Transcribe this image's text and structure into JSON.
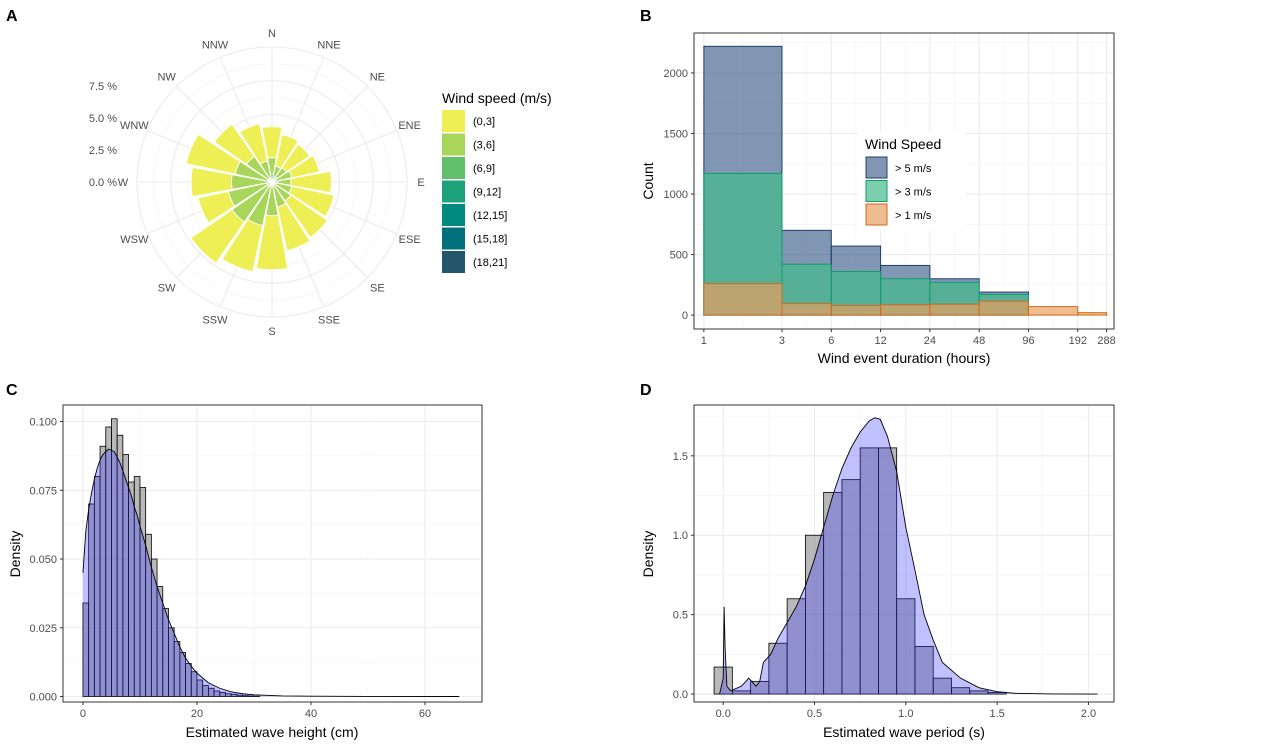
{
  "panels": [
    {
      "letter": "A"
    },
    {
      "letter": "B"
    },
    {
      "letter": "C"
    },
    {
      "letter": "D"
    }
  ],
  "chart_data": [
    {
      "panel": "A",
      "type": "windrose",
      "directions": [
        "N",
        "NNE",
        "NE",
        "ENE",
        "E",
        "ESE",
        "SE",
        "SSE",
        "S",
        "SSW",
        "SW",
        "WSW",
        "W",
        "WNW",
        "NW",
        "NNW"
      ],
      "radial_ticks": [
        "0.0 %",
        "2.5 %",
        "5.0 %",
        "7.5 %"
      ],
      "radial_range": [
        0,
        10
      ],
      "legend_title": "Wind speed (m/s)",
      "legend_labels": [
        "(0,3]",
        "(3,6]",
        "(6,9]",
        "(9,12]",
        "(12,15]",
        "(15,18]",
        "(18,21]"
      ],
      "colors": [
        "#EEEE55",
        "#A8D65A",
        "#62BF6C",
        "#1EA27C",
        "#008A80",
        "#00707A",
        "#23566A"
      ],
      "series": [
        {
          "name": "(6,9]",
          "values": [
            0.6,
            0.4,
            0.4,
            0.3,
            0.4,
            0.3,
            0.2,
            0.2,
            0.3,
            0.3,
            0.4,
            0.4,
            0.3,
            0.3,
            0.3,
            0.3
          ]
        },
        {
          "name": "(3,6]",
          "values": [
            1.8,
            1.2,
            1.3,
            1.5,
            1.4,
            1.5,
            1.7,
            1.9,
            2.5,
            3.3,
            3.6,
            3.3,
            3.0,
            2.8,
            2.3,
            1.6
          ]
        },
        {
          "name": "(0,3]",
          "values": [
            4.1,
            3.6,
            3.4,
            3.6,
            4.4,
            4.7,
            5.0,
            5.2,
            6.5,
            6.8,
            7.3,
            5.6,
            6.0,
            6.5,
            5.2,
            4.4
          ]
        }
      ]
    },
    {
      "panel": "B",
      "type": "bar",
      "xlabel": "Wind event duration (hours)",
      "ylabel": "Count",
      "x_scale": "log2",
      "x_ticks": [
        "1",
        "3",
        "6",
        "12",
        "24",
        "48",
        "96",
        "192",
        "288"
      ],
      "y_ticks": [
        "0",
        "500",
        "1000",
        "1500",
        "2000"
      ],
      "ylim": [
        0,
        2300
      ],
      "legend_title": "Wind Speed",
      "categories": [
        "1-3",
        "3-6",
        "6-12",
        "12-24",
        "24-48",
        "48-96",
        "96-192",
        "192-288"
      ],
      "series": [
        {
          "name": "> 5 m/s",
          "color": "#4A6A91",
          "values": [
            2220,
            700,
            570,
            410,
            300,
            190,
            0,
            0
          ]
        },
        {
          "name": "> 3 m/s",
          "color": "#44BB8C",
          "values": [
            1170,
            420,
            360,
            300,
            270,
            170,
            0,
            0
          ]
        },
        {
          "name": "> 1 m/s",
          "color": "#E8A060",
          "values": [
            260,
            95,
            80,
            85,
            90,
            115,
            70,
            20
          ]
        }
      ]
    },
    {
      "panel": "C",
      "type": "histogram",
      "xlabel": "Estimated wave height (cm)",
      "ylabel": "Density",
      "x_ticks": [
        "0",
        "20",
        "40",
        "60"
      ],
      "y_ticks": [
        "0.000",
        "0.025",
        "0.050",
        "0.075",
        "0.100"
      ],
      "xlim": [
        -3.5,
        70
      ],
      "ylim": [
        -0.002,
        0.106
      ],
      "bin_width": 1,
      "bin_start": 0,
      "values": [
        0.034,
        0.07,
        0.08,
        0.091,
        0.098,
        0.101,
        0.095,
        0.088,
        0.078,
        0.08,
        0.076,
        0.059,
        0.05,
        0.04,
        0.032,
        0.025,
        0.02,
        0.016,
        0.012,
        0.009,
        0.006,
        0.004,
        0.003,
        0.002,
        0.0015,
        0.001,
        0.0008,
        0.0005,
        0.0003,
        0.0002,
        0.0001
      ],
      "density_curve": {
        "x": [
          0,
          0.5,
          1,
          1.5,
          2,
          2.5,
          3,
          3.5,
          4,
          4.5,
          5,
          5.5,
          6,
          6.5,
          7,
          7.5,
          8,
          8.5,
          9,
          9.5,
          10,
          11,
          12,
          13,
          14,
          15,
          16,
          17,
          18,
          19,
          20,
          22,
          24,
          26,
          28,
          30,
          35,
          40,
          50,
          66
        ],
        "y": [
          0.045,
          0.06,
          0.068,
          0.074,
          0.079,
          0.083,
          0.086,
          0.088,
          0.089,
          0.09,
          0.0895,
          0.089,
          0.087,
          0.085,
          0.082,
          0.079,
          0.076,
          0.073,
          0.069,
          0.066,
          0.062,
          0.055,
          0.047,
          0.04,
          0.034,
          0.028,
          0.023,
          0.018,
          0.014,
          0.011,
          0.0085,
          0.005,
          0.003,
          0.0017,
          0.001,
          0.0006,
          0.0002,
          0.0001,
          3e-05,
          0
        ]
      }
    },
    {
      "panel": "D",
      "type": "histogram",
      "xlabel": "Estimated wave period (s)",
      "ylabel": "Density",
      "x_ticks": [
        "0.0",
        "0.5",
        "1.0",
        "1.5",
        "2.0"
      ],
      "y_ticks": [
        "0.0",
        "0.5",
        "1.0",
        "1.5"
      ],
      "xlim": [
        -0.16,
        2.14
      ],
      "ylim": [
        -0.05,
        1.82
      ],
      "bins": [
        {
          "x0": -0.05,
          "x1": 0.05,
          "y": 0.17
        },
        {
          "x0": 0.05,
          "x1": 0.15,
          "y": 0.02
        },
        {
          "x0": 0.15,
          "x1": 0.25,
          "y": 0.08
        },
        {
          "x0": 0.25,
          "x1": 0.35,
          "y": 0.32
        },
        {
          "x0": 0.35,
          "x1": 0.45,
          "y": 0.6
        },
        {
          "x0": 0.45,
          "x1": 0.55,
          "y": 1.0
        },
        {
          "x0": 0.55,
          "x1": 0.65,
          "y": 1.27
        },
        {
          "x0": 0.65,
          "x1": 0.75,
          "y": 1.35
        },
        {
          "x0": 0.75,
          "x1": 0.85,
          "y": 1.55
        },
        {
          "x0": 0.85,
          "x1": 0.95,
          "y": 1.55
        },
        {
          "x0": 0.95,
          "x1": 1.05,
          "y": 0.6
        },
        {
          "x0": 1.05,
          "x1": 1.15,
          "y": 0.3
        },
        {
          "x0": 1.15,
          "x1": 1.25,
          "y": 0.1
        },
        {
          "x0": 1.25,
          "x1": 1.35,
          "y": 0.04
        },
        {
          "x0": 1.35,
          "x1": 1.45,
          "y": 0.02
        },
        {
          "x0": 1.45,
          "x1": 1.55,
          "y": 0.01
        }
      ],
      "density_curve": {
        "x": [
          -0.02,
          0.0,
          0.005,
          0.01,
          0.02,
          0.04,
          0.06,
          0.1,
          0.14,
          0.18,
          0.2,
          0.22,
          0.26,
          0.3,
          0.35,
          0.4,
          0.45,
          0.5,
          0.55,
          0.6,
          0.65,
          0.7,
          0.75,
          0.8,
          0.83,
          0.86,
          0.9,
          0.95,
          1.0,
          1.05,
          1.1,
          1.15,
          1.2,
          1.3,
          1.4,
          1.5,
          1.6,
          1.8,
          2.05
        ],
        "y": [
          0,
          0.1,
          0.55,
          0.3,
          0.05,
          0.02,
          0.03,
          0.05,
          0.1,
          0.05,
          0.08,
          0.2,
          0.25,
          0.35,
          0.45,
          0.55,
          0.68,
          0.85,
          1.05,
          1.25,
          1.42,
          1.55,
          1.65,
          1.72,
          1.74,
          1.73,
          1.62,
          1.4,
          1.05,
          0.78,
          0.5,
          0.34,
          0.2,
          0.1,
          0.04,
          0.015,
          0.005,
          0.001,
          0
        ]
      }
    }
  ]
}
